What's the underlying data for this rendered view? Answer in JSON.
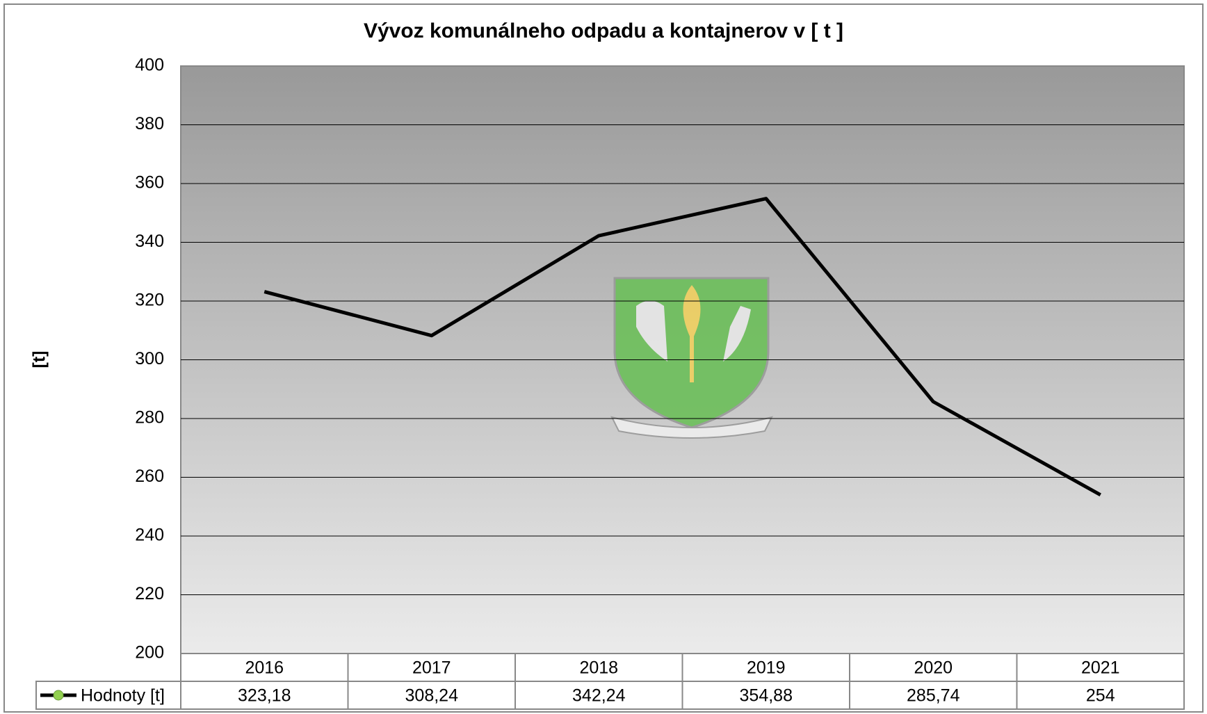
{
  "chart_data": {
    "type": "line",
    "title": "Vývoz komunálneho odpadu a kontajnerov v [ t ]",
    "ylabel": "[t]",
    "categories": [
      "2016",
      "2017",
      "2018",
      "2019",
      "2020",
      "2021"
    ],
    "series": [
      {
        "name": "Hodnoty [t]",
        "color": "#000000",
        "marker_color": "#92d050",
        "values": [
          323.18,
          308.24,
          342.24,
          354.88,
          285.74,
          254
        ],
        "value_labels": [
          "323,18",
          "308,24",
          "342,24",
          "354,88",
          "285,74",
          "254"
        ]
      }
    ],
    "ylim": [
      200,
      400
    ],
    "yticks": [
      200,
      220,
      240,
      260,
      280,
      300,
      320,
      340,
      360,
      380,
      400
    ],
    "grid": true,
    "legend": "data-table"
  }
}
